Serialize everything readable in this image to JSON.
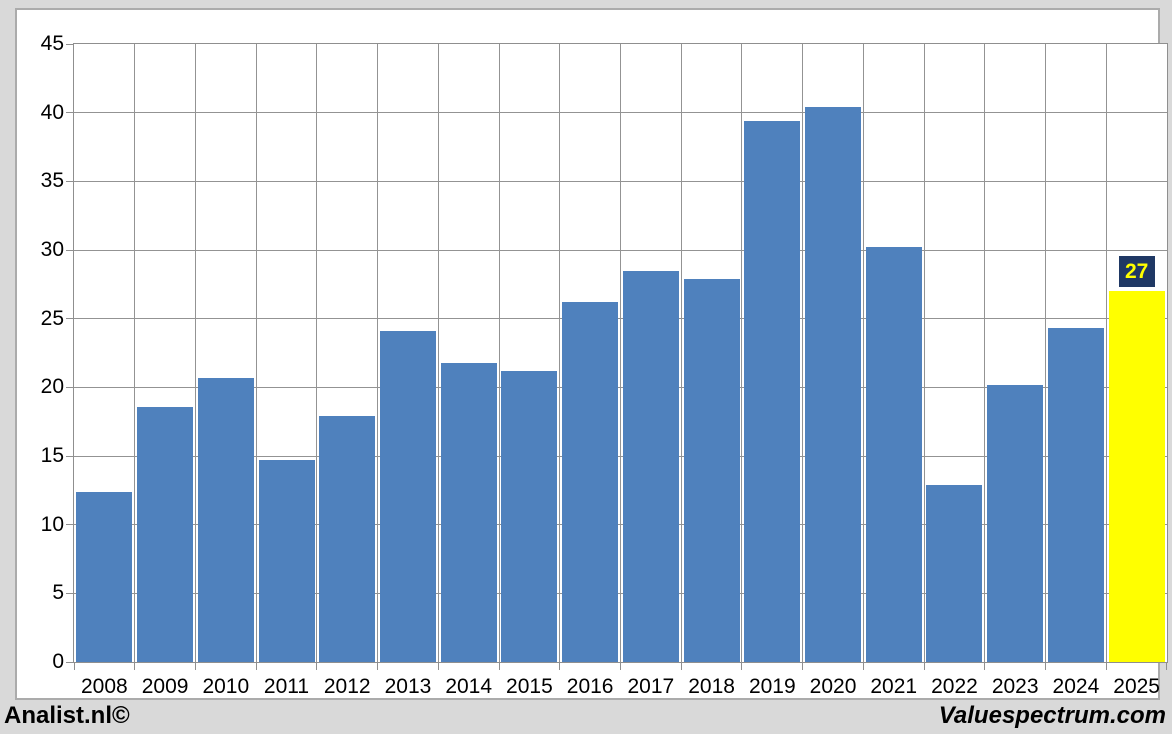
{
  "page": {
    "background": "#d9d9d9"
  },
  "chart_frame": {
    "background": "#ffffff",
    "border_color": "#ababab"
  },
  "chart_data": {
    "type": "bar",
    "title": "",
    "xlabel": "",
    "ylabel": "",
    "categories": [
      "2008",
      "2009",
      "2010",
      "2011",
      "2012",
      "2013",
      "2014",
      "2015",
      "2016",
      "2017",
      "2018",
      "2019",
      "2020",
      "2021",
      "2022",
      "2023",
      "2024",
      "2025"
    ],
    "values": [
      12.4,
      18.6,
      20.7,
      14.7,
      17.9,
      24.1,
      21.8,
      21.2,
      26.2,
      28.5,
      27.9,
      39.4,
      40.4,
      30.2,
      12.9,
      20.2,
      24.3,
      27
    ],
    "ylim": [
      0,
      45
    ],
    "y_ticks": [
      0,
      5,
      10,
      15,
      20,
      25,
      30,
      35,
      40,
      45
    ],
    "grid": true,
    "legend": false,
    "bar_color": "#4f81bd",
    "grid_color": "#939393",
    "axis_color": "#8f8f8f",
    "axis_text_color": "#000000",
    "highlight": {
      "index": 17,
      "category": "2025",
      "bar_color": "#ffff00",
      "data_label": "27",
      "label_bg": "#1f3864",
      "label_text_color": "#ffff00"
    }
  },
  "footer": {
    "left": "Analist.nl©",
    "right": "Valuespectrum.com"
  }
}
